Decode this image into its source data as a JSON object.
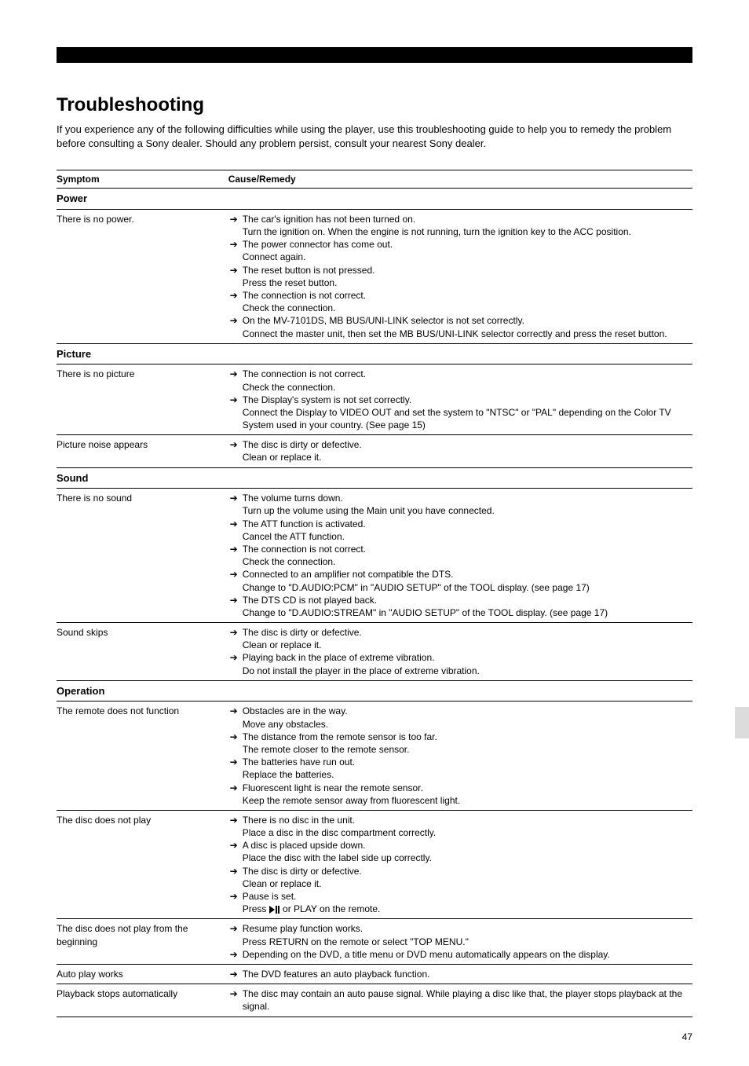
{
  "section_title": "Troubleshooting",
  "intro": "If you experience any of the following difficulties while using the player, use this troubleshooting guide to help you to remedy the problem before consulting a Sony dealer. Should any problem persist, consult your nearest Sony dealer.",
  "table": {
    "headers": {
      "symptom": "Symptom",
      "remedy": "Cause/Remedy"
    },
    "groups": [
      {
        "title": "Power",
        "rows": [
          {
            "symptom": "There is no power.",
            "items": [
              {
                "cause": "The car's ignition has not been turned on.",
                "remedy": "Turn the ignition on. When the engine is not running, turn the ignition key to the ACC position."
              },
              {
                "cause": "The power connector has come out.",
                "remedy": "Connect again."
              },
              {
                "cause": "The reset button is not pressed.",
                "remedy": "Press the reset button."
              },
              {
                "cause": "The connection is not correct.",
                "remedy": "Check the connection."
              },
              {
                "cause": "On the MV-7101DS, MB BUS/UNI-LINK selector is not set correctly.",
                "remedy": "Connect the master unit, then set the MB BUS/UNI-LINK selector correctly and press the reset button."
              }
            ]
          }
        ]
      },
      {
        "title": "Picture",
        "rows": [
          {
            "symptom": "There is no picture",
            "items": [
              {
                "cause": "The connection is not correct.",
                "remedy": "Check the connection."
              },
              {
                "cause": "The Display's system is not set correctly.",
                "remedy": "Connect the Display to VIDEO OUT and set the system to \"NTSC\" or \"PAL\" depending on the Color TV System used in your country. (See page 15)"
              }
            ]
          },
          {
            "symptom": "Picture noise appears",
            "items": [
              {
                "cause": "The disc is dirty or defective.",
                "remedy": "Clean or replace it."
              }
            ]
          }
        ]
      },
      {
        "title": "Sound",
        "rows": [
          {
            "symptom": "There is no sound",
            "items": [
              {
                "cause": "The volume turns down.",
                "remedy": "Turn up the volume using the Main unit you have connected."
              },
              {
                "cause": "The ATT function is activated.",
                "remedy": "Cancel the ATT function."
              },
              {
                "cause": "The connection is not correct.",
                "remedy": "Check the connection."
              },
              {
                "cause": "Connected to an amplifier not compatible the DTS.",
                "remedy": "Change to \"D.AUDIO:PCM\" in \"AUDIO SETUP\" of the TOOL display. (see page 17)"
              },
              {
                "cause": "The DTS CD is not played back.",
                "remedy": "Change to \"D.AUDIO:STREAM\" in \"AUDIO SETUP\" of the TOOL display. (see page 17)"
              }
            ]
          },
          {
            "symptom": "Sound skips",
            "items": [
              {
                "cause": "The disc is dirty or defective.",
                "remedy": "Clean or replace it."
              },
              {
                "cause": "Playing back in the place of extreme vibration.",
                "remedy": "Do not install the player in the place of extreme vibration."
              }
            ]
          }
        ]
      },
      {
        "title": "Operation",
        "rows": [
          {
            "symptom": "The remote does not function",
            "items": [
              {
                "cause": "Obstacles are in the way.",
                "remedy": "Move any obstacles."
              },
              {
                "cause": "The distance from the remote sensor is too far.",
                "remedy": "The remote closer to the remote sensor."
              },
              {
                "cause": "The batteries have run out.",
                "remedy": "Replace the batteries."
              },
              {
                "cause": "Fluorescent light is near the remote sensor.",
                "remedy": "Keep the remote sensor away from fluorescent light."
              }
            ]
          },
          {
            "symptom": "The disc does not play",
            "items": [
              {
                "cause": "There is no disc in the unit.",
                "remedy": "Place a disc in the disc compartment correctly."
              },
              {
                "cause": "A disc is placed upside down.",
                "remedy": "Place the disc with the label side up correctly."
              },
              {
                "cause": "The disc is dirty or defective.",
                "remedy": "Clean or replace it."
              },
              {
                "cause": "Pause is set.",
                "remedy_prefix": "Press ",
                "remedy_suffix": " or PLAY on the remote.",
                "icon": "play-pause"
              }
            ]
          },
          {
            "symptom": "The disc does not play from the beginning",
            "items": [
              {
                "cause": "Resume play function works.",
                "remedy": "Press RETURN on the remote or select \"TOP MENU.\""
              },
              {
                "cause": "Depending on the DVD, a title menu or DVD menu automatically appears on the display.",
                "remedy": ""
              }
            ]
          },
          {
            "symptom": "Auto play works",
            "items": [
              {
                "cause": "The DVD features an auto playback function.",
                "remedy": ""
              }
            ]
          },
          {
            "symptom": "Playback stops automatically",
            "items": [
              {
                "cause": "The disc may contain an auto pause signal. While playing a disc like that, the player stops playback at the signal.",
                "remedy": ""
              }
            ]
          }
        ]
      }
    ]
  },
  "page_number": "47"
}
